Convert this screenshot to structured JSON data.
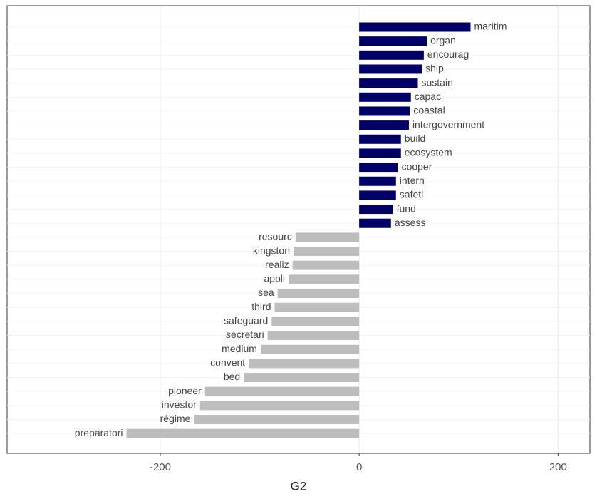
{
  "chart_data": {
    "type": "barh",
    "x_label": "G2",
    "categories": [
      "maritim",
      "organ",
      "encourag",
      "ship",
      "sustain",
      "capac",
      "coastal",
      "intergovernment",
      "build",
      "ecosystem",
      "cooper",
      "intern",
      "safeti",
      "fund",
      "assess",
      "resourc",
      "kingston",
      "realiz",
      "appli",
      "sea",
      "third",
      "safeguard",
      "secretari",
      "medium",
      "convent",
      "bed",
      "pioneer",
      "investor",
      "régime",
      "preparatori"
    ],
    "values": [
      112,
      68,
      65,
      63,
      59,
      52,
      51,
      50,
      42,
      42,
      39,
      37,
      37,
      34,
      32,
      -64,
      -66,
      -67,
      -71,
      -82,
      -85,
      -88,
      -92,
      -99,
      -111,
      -116,
      -155,
      -160,
      -166,
      -234
    ],
    "positive_color": "#000066",
    "negative_color": "#bdbdbd",
    "xlim": [
      -354,
      232
    ],
    "xticks": [
      -200,
      0,
      200
    ],
    "grid": true
  }
}
